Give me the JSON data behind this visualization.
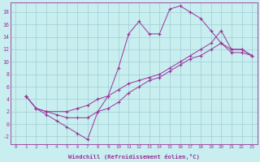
{
  "xlabel": "Windchill (Refroidissement éolien,°C)",
  "background_color": "#c8eef0",
  "grid_color": "#9ecdd4",
  "line_color": "#993399",
  "xlim": [
    -0.5,
    23.5
  ],
  "ylim": [
    -3.2,
    19.5
  ],
  "xticks": [
    0,
    1,
    2,
    3,
    4,
    5,
    6,
    7,
    8,
    9,
    10,
    11,
    12,
    13,
    14,
    15,
    16,
    17,
    18,
    19,
    20,
    21,
    22,
    23
  ],
  "yticks": [
    -2,
    0,
    2,
    4,
    6,
    8,
    10,
    12,
    14,
    16,
    18
  ],
  "line1_x": [
    1,
    2,
    3,
    4,
    5,
    6,
    7,
    8,
    9,
    10,
    11,
    12,
    13,
    14,
    15,
    16,
    17,
    18,
    19,
    20,
    21,
    22,
    23
  ],
  "line1_y": [
    4.5,
    2.5,
    1.5,
    0.5,
    -0.5,
    -1.5,
    -2.5,
    2.0,
    4.5,
    9.0,
    14.5,
    16.5,
    14.5,
    14.5,
    18.5,
    19.0,
    18.0,
    17.0,
    15.0,
    13.0,
    12.0,
    12.0,
    11.0
  ],
  "line2_x": [
    1,
    2,
    3,
    5,
    6,
    7,
    8,
    9,
    10,
    11,
    12,
    13,
    14,
    15,
    16,
    17,
    18,
    19,
    20,
    21,
    22,
    23
  ],
  "line2_y": [
    4.5,
    2.5,
    2.0,
    2.0,
    2.5,
    3.0,
    4.0,
    4.5,
    5.5,
    6.5,
    7.0,
    7.5,
    8.0,
    9.0,
    10.0,
    11.0,
    12.0,
    13.0,
    15.0,
    12.0,
    12.0,
    11.0
  ],
  "line3_x": [
    1,
    2,
    3,
    4,
    5,
    6,
    7,
    8,
    9,
    10,
    11,
    12,
    13,
    14,
    15,
    16,
    17,
    18,
    19,
    20,
    21,
    22,
    23
  ],
  "line3_y": [
    4.5,
    2.5,
    2.0,
    1.5,
    1.0,
    1.0,
    1.0,
    2.0,
    2.5,
    3.5,
    5.0,
    6.0,
    7.0,
    7.5,
    8.5,
    9.5,
    10.5,
    11.0,
    12.0,
    13.0,
    11.5,
    11.5,
    11.0
  ]
}
